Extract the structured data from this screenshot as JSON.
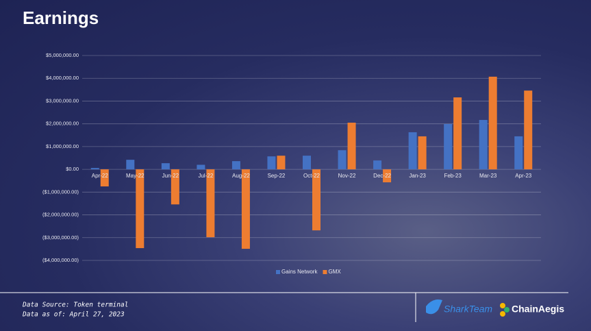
{
  "chart_data": {
    "type": "bar",
    "title": "Earnings",
    "categories": [
      "Apr-22",
      "May-22",
      "Jun-22",
      "Jul-22",
      "Aug-22",
      "Sep-22",
      "Oct-22",
      "Nov-22",
      "Dec-22",
      "Jan-23",
      "Feb-23",
      "Mar-23",
      "Apr-23"
    ],
    "series": [
      {
        "name": "Gains Network",
        "color": "#4472c4",
        "values": [
          60000,
          420000,
          270000,
          200000,
          360000,
          570000,
          600000,
          840000,
          390000,
          1630000,
          1990000,
          2170000,
          1450000
        ]
      },
      {
        "name": "GMX",
        "color": "#ed7d31",
        "values": [
          -750000,
          -3460000,
          -1540000,
          -2980000,
          -3490000,
          600000,
          -2680000,
          2050000,
          -570000,
          1450000,
          3160000,
          4070000,
          3460000
        ]
      }
    ],
    "ylim": [
      -4000000,
      5000000
    ],
    "yticks": [
      {
        "value": -4000000,
        "label": "($4,000,000.00)"
      },
      {
        "value": -3000000,
        "label": "($3,000,000.00)"
      },
      {
        "value": -2000000,
        "label": "($2,000,000.00)"
      },
      {
        "value": -1000000,
        "label": "($1,000,000.00)"
      },
      {
        "value": 0,
        "label": "$0.00"
      },
      {
        "value": 1000000,
        "label": "$1,000,000.00"
      },
      {
        "value": 2000000,
        "label": "$2,000,000.00"
      },
      {
        "value": 3000000,
        "label": "$3,000,000.00"
      },
      {
        "value": 4000000,
        "label": "$4,000,000.00"
      },
      {
        "value": 5000000,
        "label": "$5,000,000.00"
      }
    ],
    "grid": true,
    "negative_tick_color": "#c00000",
    "legend": "bottom"
  },
  "footer": {
    "source": "Data Source: Token terminal",
    "date": "Data as of: April 27, 2023",
    "logos": [
      "SharkTeam",
      "ChainAegis"
    ]
  }
}
